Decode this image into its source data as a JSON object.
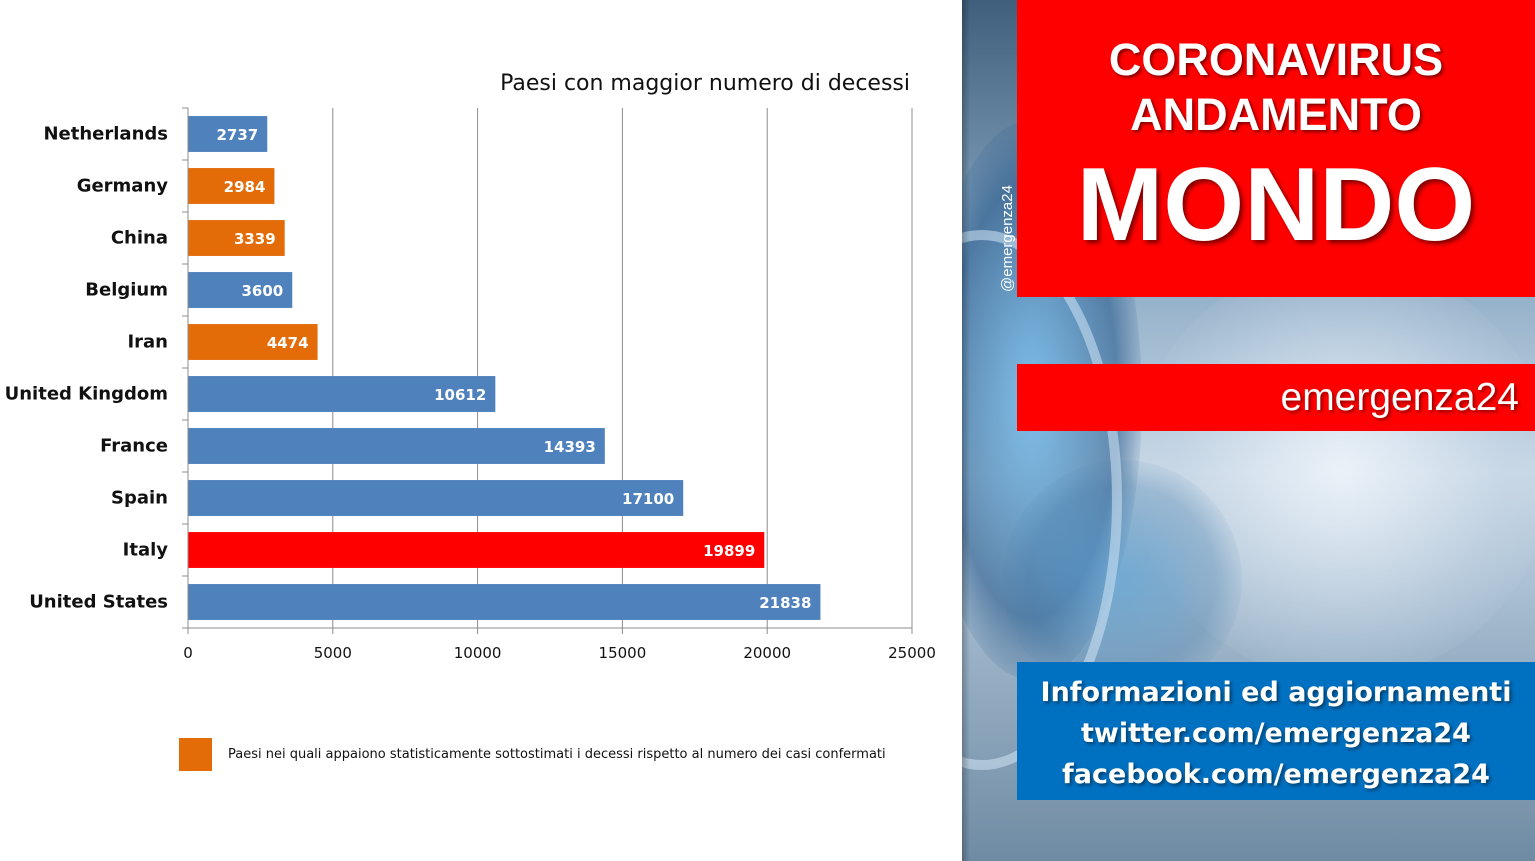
{
  "chart_data": {
    "type": "bar",
    "orientation": "horizontal",
    "title": "Paesi con maggior numero di decessi",
    "categories": [
      "Netherlands",
      "Germany",
      "China",
      "Belgium",
      "Iran",
      "United Kingdom",
      "France",
      "Spain",
      "Italy",
      "United States"
    ],
    "values": [
      2737,
      2984,
      3339,
      3600,
      4474,
      10612,
      14393,
      17100,
      19899,
      21838
    ],
    "bar_colors": [
      "#4f81bd",
      "#e36c09",
      "#e36c09",
      "#4f81bd",
      "#e36c09",
      "#4f81bd",
      "#4f81bd",
      "#4f81bd",
      "#ff0000",
      "#4f81bd"
    ],
    "xlim": [
      0,
      25000
    ],
    "xticks": [
      0,
      5000,
      10000,
      15000,
      20000,
      25000
    ],
    "grid": true,
    "data_labels": true
  },
  "legend": {
    "color": "#e36c09",
    "text": "Paesi nei quali appaiono statisticamente sottostimati i decessi rispetto al numero dei casi confermati"
  },
  "sidebar": {
    "title_line1": "CORONAVIRUS",
    "title_line2": "ANDAMENTO",
    "title_line3": "MONDO",
    "brand": "emergenza24",
    "watermark": "@emergenza24",
    "info_lines": [
      "Informazioni ed aggiornamenti",
      "twitter.com/emergenza24",
      "facebook.com/emergenza24"
    ],
    "accent_red": "#ff0000",
    "accent_blue": "#0070c0"
  }
}
